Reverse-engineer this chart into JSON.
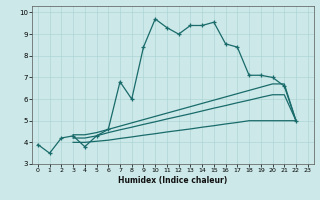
{
  "xlabel": "Humidex (Indice chaleur)",
  "bg_color": "#cce8e8",
  "line_color": "#1a6b6b",
  "xlim": [
    -0.5,
    23.5
  ],
  "ylim": [
    3,
    10.3
  ],
  "xticks": [
    0,
    1,
    2,
    3,
    4,
    5,
    6,
    7,
    8,
    9,
    10,
    11,
    12,
    13,
    14,
    15,
    16,
    17,
    18,
    19,
    20,
    21,
    22,
    23
  ],
  "yticks": [
    3,
    4,
    5,
    6,
    7,
    8,
    9,
    10
  ],
  "grid_color": "#aed4d4",
  "main_x": [
    0,
    1,
    2,
    3,
    4,
    5,
    6,
    7,
    8,
    9,
    10,
    11,
    12,
    13,
    14,
    15,
    16,
    17,
    18,
    19,
    20,
    21,
    22
  ],
  "main_y": [
    3.9,
    3.5,
    4.2,
    4.3,
    3.8,
    4.3,
    4.6,
    6.8,
    6.0,
    8.4,
    9.7,
    9.3,
    9.0,
    9.4,
    9.4,
    9.55,
    8.55,
    8.4,
    7.1,
    7.1,
    7.0,
    6.6,
    5.0
  ],
  "line1_x": [
    3,
    4,
    5,
    6,
    7,
    8,
    9,
    10,
    11,
    12,
    13,
    14,
    15,
    16,
    17,
    18,
    19,
    20,
    21,
    22
  ],
  "line1_y": [
    4.35,
    4.35,
    4.45,
    4.6,
    4.75,
    4.9,
    5.05,
    5.2,
    5.35,
    5.5,
    5.65,
    5.8,
    5.95,
    6.1,
    6.25,
    6.4,
    6.55,
    6.7,
    6.7,
    5.0
  ],
  "line2_x": [
    3,
    4,
    5,
    6,
    7,
    8,
    9,
    10,
    11,
    12,
    13,
    14,
    15,
    16,
    17,
    18,
    19,
    20,
    21,
    22
  ],
  "line2_y": [
    4.2,
    4.2,
    4.3,
    4.45,
    4.58,
    4.7,
    4.83,
    4.95,
    5.08,
    5.2,
    5.32,
    5.45,
    5.58,
    5.7,
    5.83,
    5.95,
    6.08,
    6.2,
    6.2,
    5.0
  ],
  "line3_x": [
    3,
    4,
    5,
    6,
    7,
    8,
    9,
    10,
    11,
    12,
    13,
    14,
    15,
    16,
    17,
    18,
    19,
    20,
    21,
    22
  ],
  "line3_y": [
    4.0,
    4.0,
    4.05,
    4.1,
    4.18,
    4.25,
    4.33,
    4.4,
    4.48,
    4.55,
    4.62,
    4.7,
    4.77,
    4.85,
    4.92,
    5.0,
    5.0,
    5.0,
    5.0,
    5.0
  ]
}
